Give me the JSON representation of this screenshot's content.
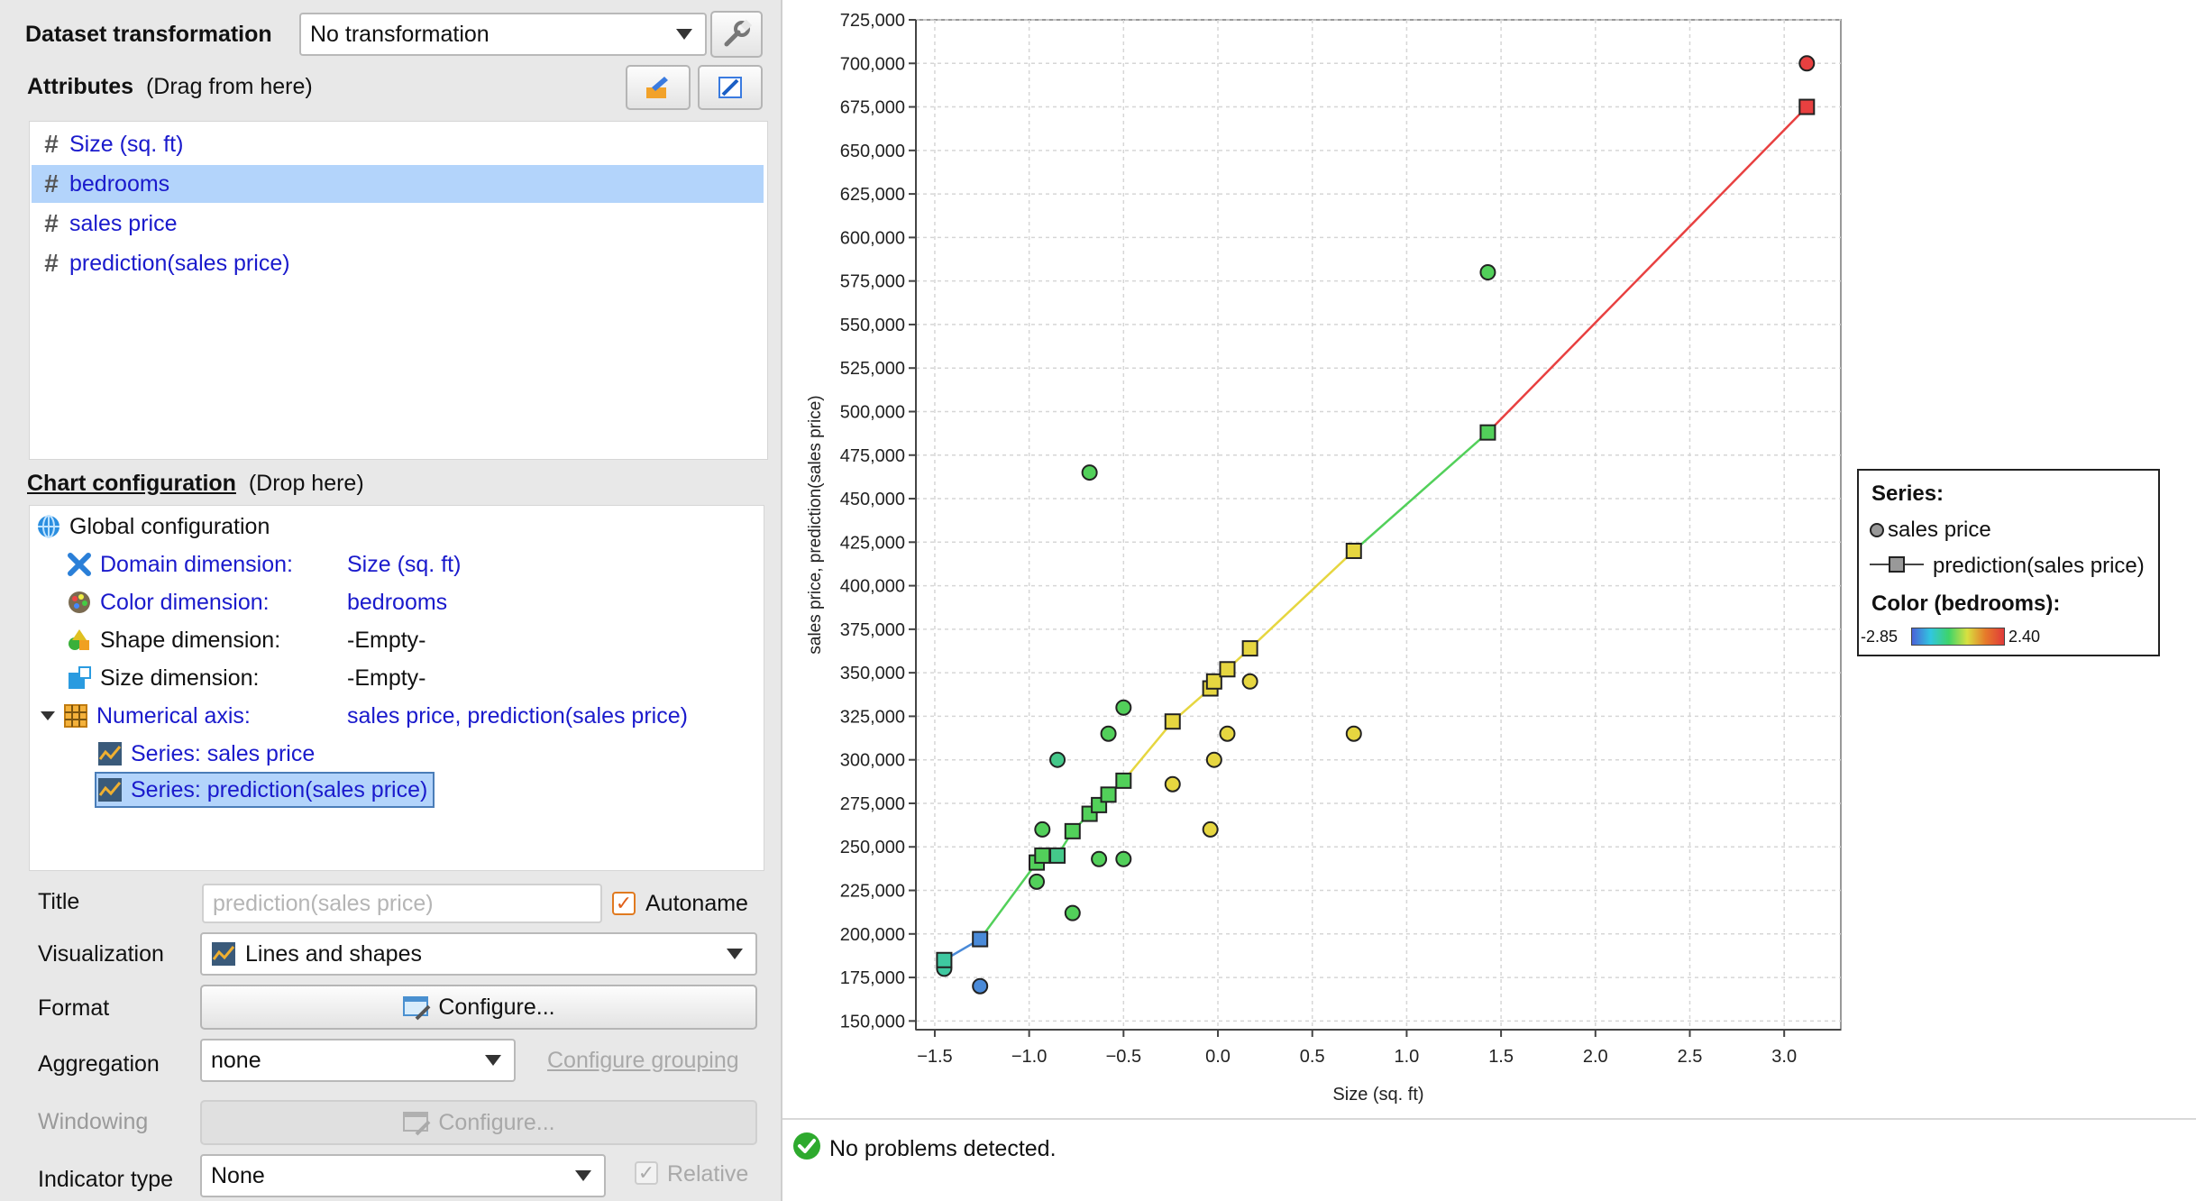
{
  "left": {
    "dataset_transformation": {
      "label": "Dataset transformation",
      "value": "No transformation"
    },
    "attributes": {
      "label": "Attributes",
      "hint": "(Drag from here)",
      "items": [
        "Size (sq. ft)",
        "bedrooms",
        "sales price",
        "prediction(sales price)"
      ],
      "selected_index": 1
    },
    "chart_config": {
      "label": "Chart configuration",
      "hint": "(Drop here)",
      "global": "Global configuration",
      "domain": {
        "label": "Domain dimension:",
        "value": "Size (sq. ft)"
      },
      "color": {
        "label": "Color dimension:",
        "value": "bedrooms"
      },
      "shape": {
        "label": "Shape dimension:",
        "value": "-Empty-"
      },
      "size": {
        "label": "Size dimension:",
        "value": "-Empty-"
      },
      "numerical_axis": {
        "label": "Numerical axis:",
        "value": "sales price, prediction(sales price)"
      },
      "series": [
        "Series: sales price",
        "Series: prediction(sales price)"
      ]
    },
    "form": {
      "title_label": "Title",
      "title_placeholder": "prediction(sales price)",
      "autoname_label": "Autoname",
      "visualization_label": "Visualization",
      "visualization_value": "Lines and shapes",
      "format_label": "Format",
      "configure_label": "Configure...",
      "aggregation_label": "Aggregation",
      "aggregation_value": "none",
      "configure_grouping": "Configure grouping",
      "windowing_label": "Windowing",
      "windowing_configure": "Configure...",
      "indicator_label": "Indicator type",
      "indicator_value": "None",
      "relative_label": "Relative"
    }
  },
  "status": {
    "message": "No problems detected.",
    "color": "#2eaa2e"
  },
  "legend": {
    "series_title": "Series:",
    "items": [
      "sales price",
      "prediction(sales price)"
    ],
    "color_title": "Color (bedrooms):",
    "min_label": "-2.85",
    "max_label": "2.40"
  },
  "chart_data": {
    "type": "scatter",
    "xlabel": "Size (sq. ft)",
    "ylabel": "sales price, prediction(sales price)",
    "xlim": [
      -1.6,
      3.3
    ],
    "ylim": [
      145000,
      725000
    ],
    "xticks": [
      "−1.5",
      "−1.0",
      "−0.5",
      "0.0",
      "0.5",
      "1.0",
      "1.5",
      "2.0",
      "2.5",
      "3.0"
    ],
    "xtick_values": [
      -1.5,
      -1.0,
      -0.5,
      0.0,
      0.5,
      1.0,
      1.5,
      2.0,
      2.5,
      3.0
    ],
    "yticks": [
      "150,000",
      "175,000",
      "200,000",
      "225,000",
      "250,000",
      "275,000",
      "300,000",
      "325,000",
      "350,000",
      "375,000",
      "400,000",
      "425,000",
      "450,000",
      "475,000",
      "500,000",
      "525,000",
      "550,000",
      "575,000",
      "600,000",
      "625,000",
      "650,000",
      "675,000",
      "700,000",
      "725,000"
    ],
    "ytick_values": [
      150000,
      175000,
      200000,
      225000,
      250000,
      275000,
      300000,
      325000,
      350000,
      375000,
      400000,
      425000,
      450000,
      475000,
      500000,
      525000,
      550000,
      575000,
      600000,
      625000,
      650000,
      675000,
      700000,
      725000
    ],
    "grid": true,
    "legend_position": "right",
    "series": [
      {
        "name": "sales price",
        "marker": "circle",
        "points": [
          {
            "x": -1.45,
            "y": 180000,
            "color": "#3ec8a0"
          },
          {
            "x": -1.26,
            "y": 170000,
            "color": "#4a8ad8"
          },
          {
            "x": -0.96,
            "y": 230000,
            "color": "#52d05a"
          },
          {
            "x": -0.93,
            "y": 260000,
            "color": "#52d05a"
          },
          {
            "x": -0.85,
            "y": 300000,
            "color": "#44c88a"
          },
          {
            "x": -0.77,
            "y": 212000,
            "color": "#52d05a"
          },
          {
            "x": -0.68,
            "y": 465000,
            "color": "#52d05a"
          },
          {
            "x": -0.63,
            "y": 243000,
            "color": "#52d05a"
          },
          {
            "x": -0.58,
            "y": 315000,
            "color": "#52d05a"
          },
          {
            "x": -0.5,
            "y": 330000,
            "color": "#52d05a"
          },
          {
            "x": -0.5,
            "y": 243000,
            "color": "#52d05a"
          },
          {
            "x": -0.24,
            "y": 286000,
            "color": "#e6d640"
          },
          {
            "x": -0.04,
            "y": 260000,
            "color": "#e6d640"
          },
          {
            "x": -0.02,
            "y": 300000,
            "color": "#e6d640"
          },
          {
            "x": 0.05,
            "y": 315000,
            "color": "#e6d640"
          },
          {
            "x": 0.17,
            "y": 345000,
            "color": "#e6d640"
          },
          {
            "x": 0.72,
            "y": 315000,
            "color": "#e6d640"
          },
          {
            "x": 1.43,
            "y": 580000,
            "color": "#52d05a"
          },
          {
            "x": 3.12,
            "y": 700000,
            "color": "#e84040"
          }
        ]
      },
      {
        "name": "prediction(sales price)",
        "marker": "square",
        "points": [
          {
            "x": -1.45,
            "y": 185000,
            "color": "#3ec8a0"
          },
          {
            "x": -1.26,
            "y": 197000,
            "color": "#4a8ad8"
          },
          {
            "x": -0.96,
            "y": 241000,
            "color": "#52d05a"
          },
          {
            "x": -0.93,
            "y": 245000,
            "color": "#52d05a"
          },
          {
            "x": -0.85,
            "y": 245000,
            "color": "#44c88a"
          },
          {
            "x": -0.77,
            "y": 259000,
            "color": "#52d05a"
          },
          {
            "x": -0.68,
            "y": 269000,
            "color": "#52d05a"
          },
          {
            "x": -0.63,
            "y": 274000,
            "color": "#52d05a"
          },
          {
            "x": -0.58,
            "y": 280000,
            "color": "#52d05a"
          },
          {
            "x": -0.5,
            "y": 288000,
            "color": "#52d05a"
          },
          {
            "x": -0.24,
            "y": 322000,
            "color": "#e6d640"
          },
          {
            "x": -0.04,
            "y": 341000,
            "color": "#e6d640"
          },
          {
            "x": -0.02,
            "y": 345000,
            "color": "#e6d640"
          },
          {
            "x": 0.05,
            "y": 352000,
            "color": "#e6d640"
          },
          {
            "x": 0.17,
            "y": 364000,
            "color": "#e6d640"
          },
          {
            "x": 0.72,
            "y": 420000,
            "color": "#e6d640"
          },
          {
            "x": 1.43,
            "y": 488000,
            "color": "#52d05a"
          },
          {
            "x": 3.12,
            "y": 675000,
            "color": "#e84040"
          }
        ]
      }
    ]
  }
}
